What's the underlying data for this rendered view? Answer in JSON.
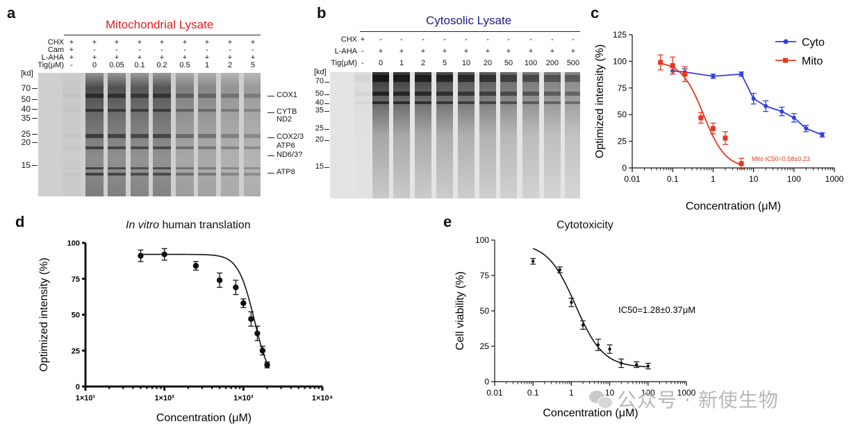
{
  "panels": {
    "a": {
      "label": "a",
      "title": "Mitochondrial Lysate",
      "title_color": "#e0201f",
      "row_labels": [
        "CHX",
        "Cam",
        "L-AHA",
        "Tig(μM)"
      ],
      "lanes": [
        {
          "chx": "+",
          "cam": "+",
          "aha": "+",
          "tig": "-"
        },
        {
          "chx": "+",
          "cam": "-",
          "aha": "+",
          "tig": "0"
        },
        {
          "chx": "+",
          "cam": "-",
          "aha": "+",
          "tig": "0.05"
        },
        {
          "chx": "+",
          "cam": "-",
          "aha": "+",
          "tig": "0.1"
        },
        {
          "chx": "+",
          "cam": "-",
          "aha": "+",
          "tig": "0.2"
        },
        {
          "chx": "+",
          "cam": "-",
          "aha": "+",
          "tig": "0.5"
        },
        {
          "chx": "+",
          "cam": "-",
          "aha": "+",
          "tig": "1"
        },
        {
          "chx": "+",
          "cam": "-",
          "aha": "+",
          "tig": "2"
        },
        {
          "chx": "+",
          "cam": "-",
          "aha": "+",
          "tig": "5"
        }
      ],
      "kd_label": "[kd]",
      "markers": [
        "70",
        "50",
        "40",
        "35",
        "25",
        "20",
        "15"
      ],
      "proteins": [
        "COX1",
        "CYTB",
        "ND2",
        "COX2/3",
        "ATP6",
        "ND6/3?",
        "ATP8"
      ]
    },
    "b": {
      "label": "b",
      "title": "Cytosolic Lysate",
      "title_color": "#1a1a8a",
      "row_labels": [
        "CHX",
        "L-AHA",
        "Tig(μM)"
      ],
      "lanes": [
        {
          "chx": "+",
          "aha": "-",
          "tig": "-"
        },
        {
          "chx": "-",
          "aha": "+",
          "tig": "0"
        },
        {
          "chx": "-",
          "aha": "+",
          "tig": "1"
        },
        {
          "chx": "-",
          "aha": "+",
          "tig": "2"
        },
        {
          "chx": "-",
          "aha": "+",
          "tig": "5"
        },
        {
          "chx": "-",
          "aha": "+",
          "tig": "10"
        },
        {
          "chx": "-",
          "aha": "+",
          "tig": "20"
        },
        {
          "chx": "-",
          "aha": "+",
          "tig": "50"
        },
        {
          "chx": "-",
          "aha": "+",
          "tig": "100"
        },
        {
          "chx": "-",
          "aha": "+",
          "tig": "200"
        },
        {
          "chx": "-",
          "aha": "+",
          "tig": "500"
        }
      ],
      "kd_label": "[kd]",
      "markers": [
        "70",
        "50",
        "40",
        "35",
        "25",
        "20",
        "15"
      ]
    }
  },
  "chart_data": [
    {
      "id": "c",
      "label": "c",
      "type": "line",
      "title": "",
      "xlabel": "Concentration (μM)",
      "ylabel": "Optimized intensity (%)",
      "xscale": "log",
      "xlim": [
        0.01,
        1000
      ],
      "ylim": [
        0,
        125
      ],
      "xticks": [
        "0.01",
        "0.1",
        "1",
        "10",
        "100",
        "1000"
      ],
      "yticks": [
        "0",
        "25",
        "50",
        "75",
        "100",
        "125"
      ],
      "legend_position": "top-right",
      "series": [
        {
          "name": "Cyto",
          "color": "#2f3fe0",
          "marker": "circle",
          "x": [
            0.1,
            0.2,
            1,
            5,
            10,
            20,
            50,
            100,
            200,
            500
          ],
          "y": [
            91,
            90,
            86,
            88,
            65,
            58,
            53,
            47,
            37,
            31
          ],
          "err": [
            3,
            3,
            2,
            2,
            5,
            5,
            4,
            4,
            3,
            2
          ]
        },
        {
          "name": "Mito",
          "color": "#e8361f",
          "marker": "square",
          "x": [
            0.05,
            0.1,
            0.2,
            0.5,
            1,
            2,
            5
          ],
          "y": [
            99,
            96,
            88,
            47,
            37,
            28,
            4
          ],
          "err": [
            7,
            8,
            7,
            5,
            5,
            6,
            5
          ],
          "annotation": "Mito IC50=0.58±0.23"
        }
      ]
    },
    {
      "id": "d",
      "label": "d",
      "type": "line",
      "title_italic": "In vitro",
      "title_rest": "human translation",
      "xlabel": "Concentration (μM)",
      "ylabel": "Optimized intensity (%)",
      "xscale": "log",
      "xlim": [
        10,
        10000
      ],
      "ylim": [
        0,
        100
      ],
      "xticks": [
        "1×10¹",
        "1×10²",
        "1×10³",
        "1×10⁴"
      ],
      "yticks": [
        "0",
        "25",
        "50",
        "75",
        "100"
      ],
      "series": [
        {
          "color": "#111111",
          "marker": "circle",
          "x": [
            50,
            100,
            250,
            500,
            800,
            1000,
            1250,
            1500,
            1750,
            2000
          ],
          "y": [
            91,
            92,
            84,
            74,
            69,
            58,
            47,
            37,
            25,
            15
          ],
          "err": [
            4,
            4,
            3,
            5,
            5,
            3,
            5,
            5,
            3,
            2
          ]
        }
      ]
    },
    {
      "id": "e",
      "label": "e",
      "type": "scatter",
      "title": "Cytotoxicity",
      "xlabel": "Concentration (μM)",
      "ylabel": "Cell viability (%)",
      "xscale": "log",
      "xlim": [
        0.01,
        1000
      ],
      "ylim": [
        0,
        100
      ],
      "xticks": [
        "0.01",
        "0.1",
        "1",
        "10",
        "100",
        "1000"
      ],
      "yticks": [
        "0",
        "25",
        "50",
        "75",
        "100"
      ],
      "annotation": "IC50=1.28±0.37μM",
      "series": [
        {
          "color": "#111111",
          "marker": "point",
          "x": [
            0.1,
            0.5,
            1,
            2,
            5,
            10,
            20,
            50,
            100
          ],
          "y": [
            85,
            79,
            56,
            40,
            26,
            23,
            13,
            12,
            11
          ],
          "err": [
            2,
            2,
            3,
            3,
            4,
            3,
            3,
            2,
            2
          ]
        }
      ]
    }
  ],
  "watermark": {
    "text": "公众号 · 新使生物"
  }
}
